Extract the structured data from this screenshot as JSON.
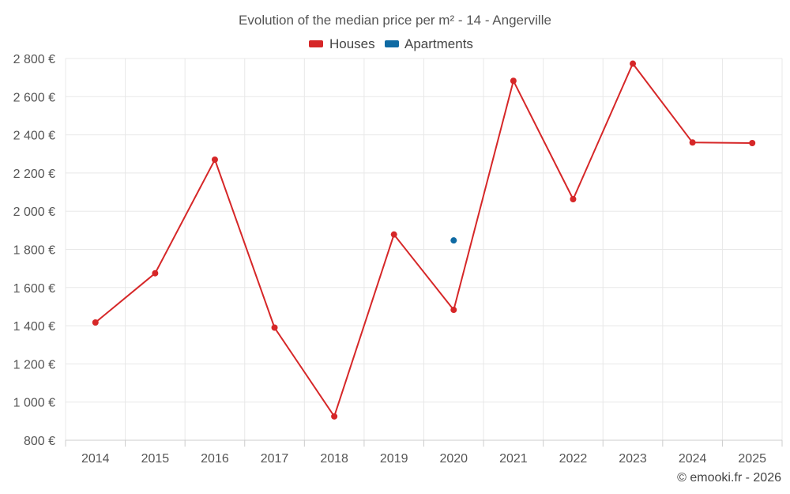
{
  "chart_data": {
    "type": "line",
    "title": "Evolution of the median price per m² - 14 - Angerville",
    "categories": [
      "2014",
      "2015",
      "2016",
      "2017",
      "2018",
      "2019",
      "2020",
      "2021",
      "2022",
      "2023",
      "2024",
      "2025"
    ],
    "ylim": [
      800,
      2800
    ],
    "yticks": [
      800,
      1000,
      1200,
      1400,
      1600,
      1800,
      2000,
      2200,
      2400,
      2600,
      2800
    ],
    "ytick_labels": [
      "800 €",
      "1 000 €",
      "1 200 €",
      "1 400 €",
      "1 600 €",
      "1 800 €",
      "2 000 €",
      "2 200 €",
      "2 400 €",
      "2 600 €",
      "2 800 €"
    ],
    "grid": true,
    "legend_position": "top-center",
    "series": [
      {
        "name": "Houses",
        "color": "#d62728",
        "values": [
          1417,
          1675,
          2270,
          1390,
          925,
          1878,
          1483,
          2683,
          2063,
          2773,
          2360,
          2357
        ]
      },
      {
        "name": "Apartments",
        "color": "#0f6aa3",
        "values": [
          null,
          null,
          null,
          null,
          null,
          null,
          1847,
          null,
          null,
          null,
          null,
          null
        ]
      }
    ]
  },
  "credit": "© emooki.fr - 2026"
}
